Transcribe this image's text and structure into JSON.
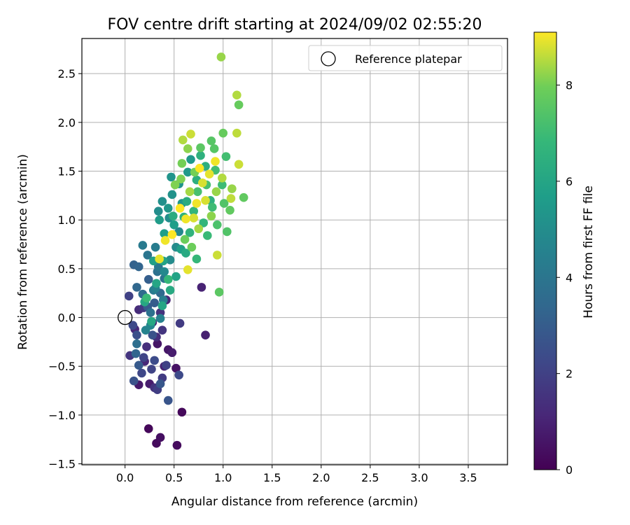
{
  "chart_data": {
    "type": "scatter",
    "title": "FOV centre drift starting at 2024/09/02 02:55:20",
    "xlabel": "Angular distance from reference (arcmin)",
    "ylabel": "Rotation from reference (arcmin)",
    "xlim": [
      -0.44,
      3.9
    ],
    "ylim": [
      -1.51,
      2.86
    ],
    "xticks": [
      0.0,
      0.5,
      1.0,
      1.5,
      2.0,
      2.5,
      3.0,
      3.5
    ],
    "xtick_labels": [
      "0.0",
      "0.5",
      "1.0",
      "1.5",
      "2.0",
      "2.5",
      "3.0",
      "3.5"
    ],
    "yticks": [
      -1.5,
      -1.0,
      -0.5,
      0.0,
      0.5,
      1.0,
      1.5,
      2.0,
      2.5
    ],
    "ytick_labels": [
      "−1.5",
      "−1.0",
      "−0.5",
      "0.0",
      "0.5",
      "1.0",
      "1.5",
      "2.0",
      "2.5"
    ],
    "grid": true,
    "legend": {
      "position": "top-right",
      "entries": [
        {
          "label": "Reference platepar",
          "marker": "open-circle"
        }
      ]
    },
    "reference_point": {
      "x": 0.0,
      "y": 0.0
    },
    "colorbar": {
      "label": "Hours from first FF file",
      "range": [
        0,
        9.1
      ],
      "ticks": [
        0,
        2,
        4,
        6,
        8
      ],
      "tick_labels": [
        "0",
        "2",
        "4",
        "6",
        "8"
      ],
      "colormap": "viridis"
    },
    "points": [
      {
        "x": 0.24,
        "y": -1.14,
        "h": 0.2
      },
      {
        "x": 0.32,
        "y": -1.29,
        "h": 0.3
      },
      {
        "x": 0.36,
        "y": -1.23,
        "h": 0.4
      },
      {
        "x": 0.53,
        "y": -1.31,
        "h": 0.3
      },
      {
        "x": 0.58,
        "y": -0.97,
        "h": 0.2
      },
      {
        "x": 0.52,
        "y": -0.52,
        "h": 0.5
      },
      {
        "x": 0.44,
        "y": -0.33,
        "h": 0.6
      },
      {
        "x": 0.48,
        "y": -0.36,
        "h": 0.8
      },
      {
        "x": 0.14,
        "y": -0.69,
        "h": 0.7
      },
      {
        "x": 0.25,
        "y": -0.68,
        "h": 0.8
      },
      {
        "x": 0.33,
        "y": -0.27,
        "h": 0.6
      },
      {
        "x": 0.28,
        "y": -0.05,
        "h": 0.9
      },
      {
        "x": 0.4,
        "y": -0.5,
        "h": 1.0
      },
      {
        "x": 0.78,
        "y": 0.31,
        "h": 1.0
      },
      {
        "x": 0.82,
        "y": -0.18,
        "h": 0.9
      },
      {
        "x": 0.2,
        "y": -0.45,
        "h": 1.1
      },
      {
        "x": 0.42,
        "y": 0.18,
        "h": 1.1
      },
      {
        "x": 0.3,
        "y": -0.72,
        "h": 1.5
      },
      {
        "x": 0.1,
        "y": -0.12,
        "h": 1.2
      },
      {
        "x": 0.14,
        "y": 0.08,
        "h": 1.3
      },
      {
        "x": 0.22,
        "y": -0.3,
        "h": 1.4
      },
      {
        "x": 0.32,
        "y": -0.2,
        "h": 1.3
      },
      {
        "x": 0.36,
        "y": 0.05,
        "h": 1.5
      },
      {
        "x": 0.05,
        "y": -0.39,
        "h": 1.6
      },
      {
        "x": 0.19,
        "y": 0.1,
        "h": 1.7
      },
      {
        "x": 0.38,
        "y": -0.13,
        "h": 1.6
      },
      {
        "x": 0.56,
        "y": -0.06,
        "h": 1.8
      },
      {
        "x": 0.33,
        "y": -0.74,
        "h": 1.9
      },
      {
        "x": 0.38,
        "y": -0.62,
        "h": 1.8
      },
      {
        "x": 0.42,
        "y": -0.49,
        "h": 2.0
      },
      {
        "x": 0.27,
        "y": -0.53,
        "h": 2.1
      },
      {
        "x": 0.17,
        "y": -0.57,
        "h": 2.2
      },
      {
        "x": 0.04,
        "y": 0.22,
        "h": 2.0
      },
      {
        "x": 0.08,
        "y": -0.08,
        "h": 2.3
      },
      {
        "x": 0.19,
        "y": -0.41,
        "h": 2.1
      },
      {
        "x": 0.3,
        "y": -0.44,
        "h": 2.4
      },
      {
        "x": 0.55,
        "y": -0.59,
        "h": 2.3
      },
      {
        "x": 0.12,
        "y": -0.18,
        "h": 2.5
      },
      {
        "x": 0.28,
        "y": -0.18,
        "h": 2.6
      },
      {
        "x": 0.44,
        "y": -0.85,
        "h": 2.7
      },
      {
        "x": 0.09,
        "y": -0.65,
        "h": 2.6
      },
      {
        "x": 0.36,
        "y": -0.68,
        "h": 2.8
      },
      {
        "x": 0.14,
        "y": -0.49,
        "h": 2.9
      },
      {
        "x": 0.23,
        "y": 0.11,
        "h": 3.0
      },
      {
        "x": 0.3,
        "y": 0.15,
        "h": 3.0
      },
      {
        "x": 0.24,
        "y": 0.39,
        "h": 3.1
      },
      {
        "x": 0.09,
        "y": 0.54,
        "h": 3.2
      },
      {
        "x": 0.14,
        "y": 0.52,
        "h": 3.3
      },
      {
        "x": 0.12,
        "y": 0.31,
        "h": 3.4
      },
      {
        "x": 0.11,
        "y": -0.37,
        "h": 3.3
      },
      {
        "x": 0.36,
        "y": 0.25,
        "h": 3.5
      },
      {
        "x": 0.18,
        "y": 0.24,
        "h": 3.6
      },
      {
        "x": 0.12,
        "y": -0.27,
        "h": 3.7
      },
      {
        "x": 0.26,
        "y": 0.05,
        "h": 3.8
      },
      {
        "x": 0.4,
        "y": 0.4,
        "h": 3.9
      },
      {
        "x": 0.33,
        "y": 0.47,
        "h": 3.8
      },
      {
        "x": 0.23,
        "y": 0.64,
        "h": 4.0
      },
      {
        "x": 0.34,
        "y": 0.52,
        "h": 4.1
      },
      {
        "x": 0.18,
        "y": 0.74,
        "h": 4.2
      },
      {
        "x": 0.31,
        "y": 0.72,
        "h": 4.3
      },
      {
        "x": 0.29,
        "y": 0.28,
        "h": 4.2
      },
      {
        "x": 0.39,
        "y": 0.18,
        "h": 4.4
      },
      {
        "x": 0.36,
        "y": -0.01,
        "h": 4.5
      },
      {
        "x": 0.21,
        "y": -0.13,
        "h": 4.6
      },
      {
        "x": 0.26,
        "y": -0.08,
        "h": 4.7
      },
      {
        "x": 0.31,
        "y": 0.3,
        "h": 4.5
      },
      {
        "x": 0.4,
        "y": 0.47,
        "h": 4.8
      },
      {
        "x": 0.46,
        "y": 0.59,
        "h": 4.9
      },
      {
        "x": 0.52,
        "y": 0.72,
        "h": 4.9
      },
      {
        "x": 0.55,
        "y": 0.88,
        "h": 4.8
      },
      {
        "x": 0.45,
        "y": 1.02,
        "h": 5.0
      },
      {
        "x": 0.34,
        "y": 1.09,
        "h": 5.0
      },
      {
        "x": 0.38,
        "y": 1.19,
        "h": 5.1
      },
      {
        "x": 0.48,
        "y": 1.26,
        "h": 5.2
      },
      {
        "x": 0.55,
        "y": 1.37,
        "h": 5.3
      },
      {
        "x": 0.47,
        "y": 1.44,
        "h": 5.3
      },
      {
        "x": 0.58,
        "y": 1.17,
        "h": 5.4
      },
      {
        "x": 0.64,
        "y": 1.49,
        "h": 5.5
      },
      {
        "x": 0.67,
        "y": 1.62,
        "h": 5.5
      },
      {
        "x": 0.44,
        "y": 1.12,
        "h": 5.4
      },
      {
        "x": 0.35,
        "y": 1.0,
        "h": 5.6
      },
      {
        "x": 0.4,
        "y": 0.86,
        "h": 5.7
      },
      {
        "x": 0.5,
        "y": 0.95,
        "h": 5.7
      },
      {
        "x": 0.57,
        "y": 0.7,
        "h": 5.8
      },
      {
        "x": 0.29,
        "y": 0.58,
        "h": 5.8
      },
      {
        "x": 0.39,
        "y": 0.58,
        "h": 5.9
      },
      {
        "x": 0.52,
        "y": 0.42,
        "h": 5.9
      },
      {
        "x": 0.32,
        "y": 0.35,
        "h": 6.0
      },
      {
        "x": 0.38,
        "y": 0.12,
        "h": 6.0
      },
      {
        "x": 0.2,
        "y": 0.16,
        "h": 6.1
      },
      {
        "x": 0.27,
        "y": -0.04,
        "h": 6.1
      },
      {
        "x": 0.46,
        "y": 0.28,
        "h": 6.2
      },
      {
        "x": 0.62,
        "y": 0.66,
        "h": 6.2
      },
      {
        "x": 0.49,
        "y": 1.04,
        "h": 6.3
      },
      {
        "x": 0.63,
        "y": 1.19,
        "h": 6.3
      },
      {
        "x": 0.73,
        "y": 1.41,
        "h": 6.4
      },
      {
        "x": 0.82,
        "y": 1.55,
        "h": 6.4
      },
      {
        "x": 0.77,
        "y": 1.66,
        "h": 6.5
      },
      {
        "x": 0.87,
        "y": 1.2,
        "h": 6.5
      },
      {
        "x": 0.66,
        "y": 0.87,
        "h": 6.6
      },
      {
        "x": 0.6,
        "y": 1.03,
        "h": 6.6
      },
      {
        "x": 0.7,
        "y": 1.09,
        "h": 6.7
      },
      {
        "x": 0.8,
        "y": 0.97,
        "h": 6.7
      },
      {
        "x": 0.73,
        "y": 0.6,
        "h": 6.8
      },
      {
        "x": 0.44,
        "y": 0.39,
        "h": 6.8
      },
      {
        "x": 0.22,
        "y": 0.2,
        "h": 6.9
      },
      {
        "x": 0.84,
        "y": 0.84,
        "h": 6.9
      },
      {
        "x": 0.89,
        "y": 1.13,
        "h": 7.0
      },
      {
        "x": 0.99,
        "y": 1.36,
        "h": 7.0
      },
      {
        "x": 1.03,
        "y": 1.65,
        "h": 7.1
      },
      {
        "x": 0.92,
        "y": 1.51,
        "h": 7.1
      },
      {
        "x": 0.74,
        "y": 1.29,
        "h": 7.2
      },
      {
        "x": 0.83,
        "y": 1.36,
        "h": 7.2
      },
      {
        "x": 0.94,
        "y": 0.95,
        "h": 7.3
      },
      {
        "x": 1.04,
        "y": 0.88,
        "h": 7.4
      },
      {
        "x": 1.01,
        "y": 1.17,
        "h": 7.4
      },
      {
        "x": 0.91,
        "y": 1.73,
        "h": 7.5
      },
      {
        "x": 0.88,
        "y": 1.81,
        "h": 7.5
      },
      {
        "x": 0.77,
        "y": 1.74,
        "h": 7.6
      },
      {
        "x": 0.96,
        "y": 0.26,
        "h": 7.6
      },
      {
        "x": 1.21,
        "y": 1.23,
        "h": 7.7
      },
      {
        "x": 1.07,
        "y": 1.1,
        "h": 7.7
      },
      {
        "x": 1.16,
        "y": 2.18,
        "h": 7.8
      },
      {
        "x": 1.0,
        "y": 1.89,
        "h": 7.8
      },
      {
        "x": 0.68,
        "y": 0.72,
        "h": 7.9
      },
      {
        "x": 0.61,
        "y": 0.8,
        "h": 7.9
      },
      {
        "x": 0.71,
        "y": 1.49,
        "h": 8.0
      },
      {
        "x": 0.58,
        "y": 1.58,
        "h": 8.0
      },
      {
        "x": 0.51,
        "y": 1.36,
        "h": 8.1
      },
      {
        "x": 0.57,
        "y": 1.42,
        "h": 8.1
      },
      {
        "x": 0.64,
        "y": 1.73,
        "h": 8.2
      },
      {
        "x": 0.88,
        "y": 1.04,
        "h": 8.2
      },
      {
        "x": 0.93,
        "y": 1.29,
        "h": 8.3
      },
      {
        "x": 1.09,
        "y": 1.32,
        "h": 8.3
      },
      {
        "x": 0.75,
        "y": 0.91,
        "h": 8.4
      },
      {
        "x": 0.66,
        "y": 1.29,
        "h": 8.4
      },
      {
        "x": 0.59,
        "y": 1.82,
        "h": 8.5
      },
      {
        "x": 0.99,
        "y": 1.43,
        "h": 8.5
      },
      {
        "x": 1.08,
        "y": 1.22,
        "h": 8.6
      },
      {
        "x": 1.14,
        "y": 1.89,
        "h": 8.6
      },
      {
        "x": 1.16,
        "y": 1.57,
        "h": 8.7
      },
      {
        "x": 0.94,
        "y": 0.64,
        "h": 8.7
      },
      {
        "x": 0.67,
        "y": 1.88,
        "h": 8.7
      },
      {
        "x": 0.82,
        "y": 1.2,
        "h": 8.8
      },
      {
        "x": 0.7,
        "y": 1.02,
        "h": 8.8
      },
      {
        "x": 0.79,
        "y": 1.38,
        "h": 8.8
      },
      {
        "x": 0.86,
        "y": 1.47,
        "h": 8.9
      },
      {
        "x": 0.64,
        "y": 0.49,
        "h": 8.9
      },
      {
        "x": 0.35,
        "y": 0.6,
        "h": 8.9
      },
      {
        "x": 0.41,
        "y": 0.79,
        "h": 9.0
      },
      {
        "x": 0.62,
        "y": 1.01,
        "h": 9.0
      },
      {
        "x": 0.73,
        "y": 1.17,
        "h": 9.0
      },
      {
        "x": 0.92,
        "y": 1.6,
        "h": 9.0
      },
      {
        "x": 0.56,
        "y": 1.12,
        "h": 9.1
      },
      {
        "x": 0.48,
        "y": 0.85,
        "h": 9.1
      },
      {
        "x": 0.76,
        "y": 1.53,
        "h": 9.1
      },
      {
        "x": 0.98,
        "y": 2.67,
        "h": 8.3
      },
      {
        "x": 1.14,
        "y": 2.28,
        "h": 8.5
      }
    ]
  }
}
